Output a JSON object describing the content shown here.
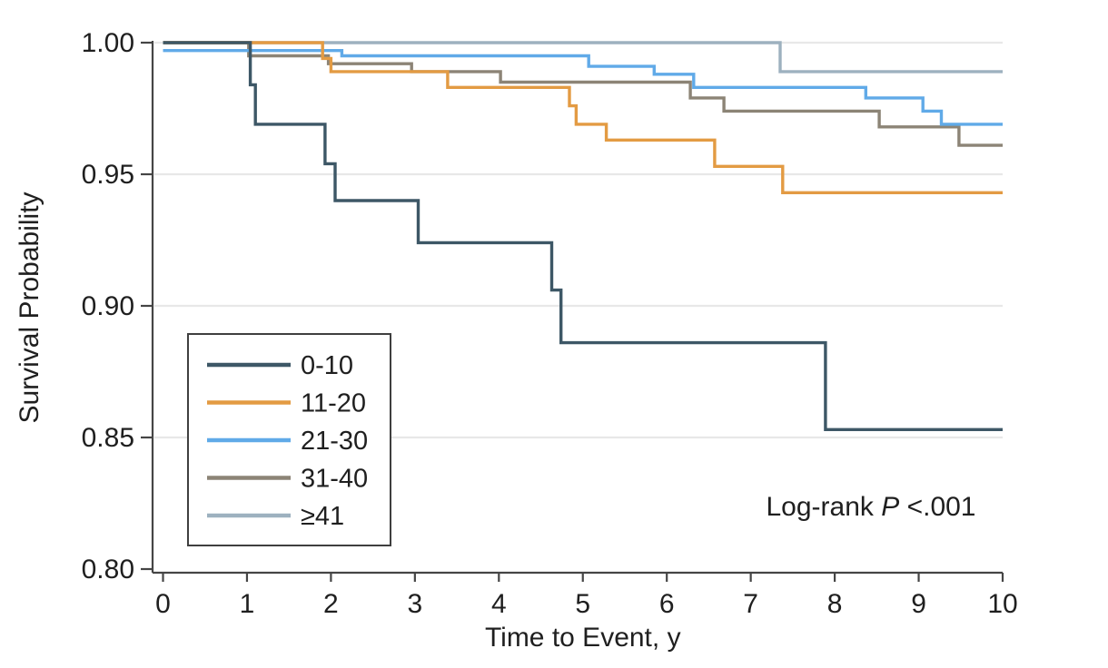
{
  "chart_data": {
    "type": "line",
    "subtype": "kaplan-meier-step-survival",
    "title": "",
    "xlabel": "Time to Event, y",
    "ylabel": "Survival Probability",
    "xlim": [
      0,
      10
    ],
    "ylim": [
      0.8,
      1.0
    ],
    "xticks": [
      0,
      1,
      2,
      3,
      4,
      5,
      6,
      7,
      8,
      9,
      10
    ],
    "ytick_labels": [
      "1.00",
      "0.95",
      "0.90",
      "0.85",
      "0.80"
    ],
    "grid": "horizontal-only",
    "gridline_values": [
      1.0,
      0.95,
      0.9,
      0.85
    ],
    "legend": {
      "position": "lower-left",
      "border": true,
      "entries": [
        "0-10",
        "11-20",
        "21-30",
        "31-40",
        "≥41"
      ]
    },
    "annotation": {
      "text": "Log-rank P <.001",
      "prefix": "Log-rank ",
      "italic_part": "P",
      "suffix": " <.001"
    },
    "series": [
      {
        "name": "0-10",
        "color": "#3d5766",
        "start": 1.0,
        "end_value": 0.853,
        "steps": [
          [
            1.04,
            0.984
          ],
          [
            1.1,
            0.969
          ],
          [
            1.93,
            0.954
          ],
          [
            2.05,
            0.94
          ],
          [
            3.04,
            0.924
          ],
          [
            4.63,
            0.906
          ],
          [
            4.74,
            0.886
          ],
          [
            7.89,
            0.853
          ]
        ]
      },
      {
        "name": "11-20",
        "color": "#e39b43",
        "start": 1.0,
        "end_value": 0.943,
        "steps": [
          [
            1.9,
            0.994
          ],
          [
            2.0,
            0.989
          ],
          [
            3.39,
            0.983
          ],
          [
            4.84,
            0.976
          ],
          [
            4.92,
            0.969
          ],
          [
            5.28,
            0.963
          ],
          [
            6.57,
            0.953
          ],
          [
            7.38,
            0.943
          ]
        ]
      },
      {
        "name": "21-30",
        "color": "#60aae8",
        "start": 0.997,
        "end_value": 0.969,
        "steps": [
          [
            2.13,
            0.995
          ],
          [
            5.07,
            0.991
          ],
          [
            5.85,
            0.988
          ],
          [
            6.32,
            0.983
          ],
          [
            8.37,
            0.979
          ],
          [
            9.05,
            0.974
          ],
          [
            9.27,
            0.969
          ]
        ]
      },
      {
        "name": "31-40",
        "color": "#8c8476",
        "start": 1.0,
        "end_value": 0.961,
        "steps": [
          [
            1.02,
            0.995
          ],
          [
            1.97,
            0.992
          ],
          [
            2.96,
            0.989
          ],
          [
            4.02,
            0.985
          ],
          [
            6.28,
            0.979
          ],
          [
            6.68,
            0.974
          ],
          [
            8.53,
            0.968
          ],
          [
            9.48,
            0.961
          ]
        ]
      },
      {
        "name": "≥41",
        "color": "#9db1bf",
        "start": 1.0,
        "end_value": 0.989,
        "steps": [
          [
            7.35,
            0.989
          ]
        ]
      }
    ],
    "colors": {
      "axis": "#454545",
      "grid": "#e8e8e8",
      "text": "#1f1f1f",
      "legend_border": "#3f3f3f",
      "background": "#ffffff"
    }
  }
}
